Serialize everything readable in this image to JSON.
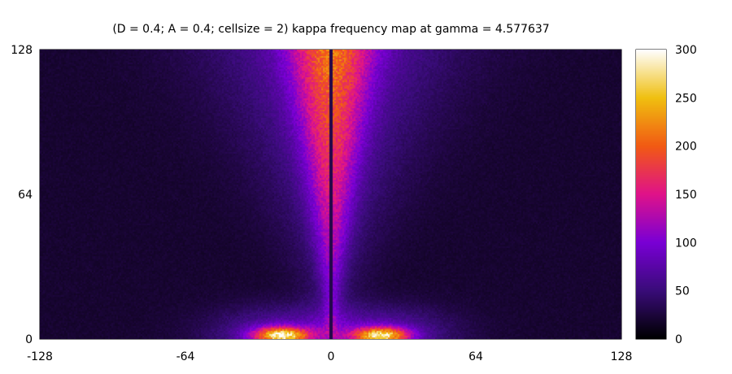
{
  "chart_data": {
    "type": "heatmap",
    "title": "(D = 0.4; A = 0.4; cellsize = 2) kappa frequency map at gamma = 4.577637",
    "xlabel": "",
    "ylabel": "",
    "xlim": [
      -128,
      128
    ],
    "ylim": [
      0,
      128
    ],
    "x_ticks": [
      "-128",
      "-64",
      "0",
      "64",
      "128"
    ],
    "y_ticks": [
      "0",
      "64",
      "128"
    ],
    "colorbar": {
      "range": [
        0,
        300
      ],
      "ticks": [
        "0",
        "50",
        "100",
        "150",
        "200",
        "250",
        "300"
      ],
      "palette": [
        "#000000",
        "#3a0c7a",
        "#7a00d6",
        "#e0138a",
        "#f25a14",
        "#f0c010",
        "#ffffff"
      ]
    },
    "structure": {
      "ridge_x": 0,
      "ridge_value_near_top": 140,
      "ridge_halfwidth_at_top": 16,
      "hotspots": [
        {
          "x": -22,
          "y": 2,
          "value": 210
        },
        {
          "x": 22,
          "y": 2,
          "value": 200
        }
      ],
      "background_value": 20
    }
  }
}
